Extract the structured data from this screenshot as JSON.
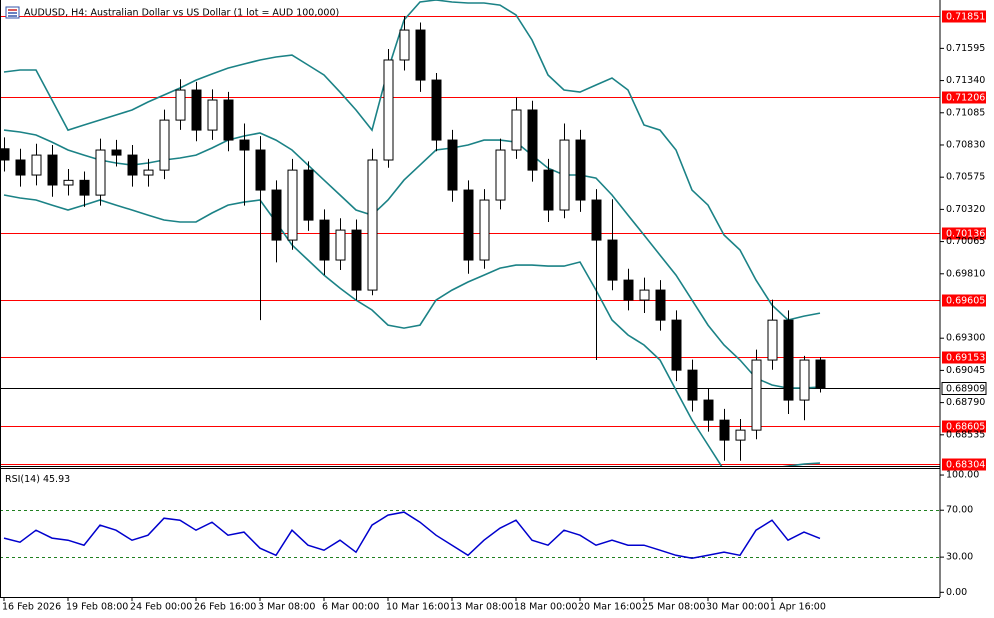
{
  "chart_data": [
    {
      "type": "candlestick",
      "title": "AUDUSD, H4:  Australian Dollar vs US Dollar (1 lot = AUD 100,000)",
      "categories": [
        "16 Feb 2026",
        null,
        null,
        null,
        "19 Feb 08:00",
        null,
        null,
        null,
        "24 Feb 00:00",
        null,
        null,
        null,
        "26 Feb 16:00",
        null,
        null,
        null,
        "3 Mar 08:00",
        null,
        null,
        null,
        "6 Mar 00:00",
        null,
        null,
        null,
        "10 Mar 16:00",
        null,
        null,
        null,
        "13 Mar 08:00",
        null,
        null,
        null,
        "18 Mar 00:00",
        null,
        null,
        null,
        "20 Mar 16:00",
        null,
        null,
        null,
        "25 Mar 08:00",
        null,
        null,
        null,
        "30 Mar 00:00",
        null,
        null,
        null,
        "1 Apr 16:00",
        null,
        null,
        null
      ],
      "open": [
        0.708,
        0.70711,
        0.70592,
        0.7075,
        0.70513,
        0.7055,
        0.70433,
        0.7079,
        0.7075,
        0.70592,
        0.70631,
        0.71027,
        0.71265,
        0.70948,
        0.71186,
        0.70869,
        0.7079,
        0.70473,
        0.70077,
        0.70631,
        0.70235,
        0.69919,
        0.70156,
        0.69681,
        0.70711,
        0.71503,
        0.7174,
        0.71344,
        0.70869,
        0.70473,
        0.69919,
        0.70394,
        0.7079,
        0.71107,
        0.70631,
        0.70315,
        0.70869,
        0.70394,
        0.70077,
        0.6976,
        0.69602,
        0.69681,
        0.69443,
        0.69047,
        0.6881,
        0.68651,
        0.68493,
        0.68572,
        0.69127,
        0.69443,
        0.6881,
        0.69127
      ],
      "high": [
        0.7089,
        0.708,
        0.7084,
        0.7083,
        0.7064,
        0.7062,
        0.7088,
        0.7087,
        0.7083,
        0.7072,
        0.7111,
        0.7135,
        0.7133,
        0.7127,
        0.7125,
        0.71,
        0.709,
        0.7055,
        0.7072,
        0.707,
        0.7032,
        0.7025,
        0.7024,
        0.708,
        0.7159,
        0.71851,
        0.718,
        0.714,
        0.7095,
        0.7055,
        0.7048,
        0.7088,
        0.71206,
        0.7118,
        0.7072,
        0.71,
        0.7095,
        0.7048,
        0.704,
        0.6985,
        0.6978,
        0.6976,
        0.6952,
        0.6913,
        0.689,
        0.6874,
        0.6866,
        0.6921,
        0.69605,
        0.6952,
        0.6916,
        0.6915
      ],
      "low": [
        0.7062,
        0.705,
        0.7051,
        0.7042,
        0.7043,
        0.7034,
        0.7035,
        0.7066,
        0.705,
        0.705,
        0.7056,
        0.7095,
        0.7086,
        0.7087,
        0.7078,
        0.7035,
        0.69443,
        0.699,
        0.7,
        0.7015,
        0.698,
        0.6984,
        0.696,
        0.6964,
        0.7065,
        0.7142,
        0.7125,
        0.7078,
        0.7038,
        0.6981,
        0.6985,
        0.7032,
        0.7072,
        0.7054,
        0.7022,
        0.7025,
        0.703,
        0.69127,
        0.6968,
        0.6952,
        0.695,
        0.6936,
        0.6896,
        0.6872,
        0.6856,
        0.6833,
        0.6833,
        0.685,
        0.6905,
        0.687,
        0.6865,
        0.6887
      ],
      "close": [
        0.70711,
        0.70592,
        0.7075,
        0.70513,
        0.7055,
        0.70433,
        0.7079,
        0.7075,
        0.70592,
        0.70631,
        0.71027,
        0.71265,
        0.70948,
        0.71186,
        0.70869,
        0.7079,
        0.70473,
        0.70077,
        0.70631,
        0.70235,
        0.69919,
        0.70156,
        0.69681,
        0.70711,
        0.71503,
        0.7174,
        0.71344,
        0.70869,
        0.70473,
        0.69919,
        0.70394,
        0.7079,
        0.71107,
        0.70631,
        0.70315,
        0.70869,
        0.70394,
        0.70077,
        0.6976,
        0.69602,
        0.69681,
        0.69443,
        0.69047,
        0.6881,
        0.68651,
        0.68493,
        0.68572,
        0.69127,
        0.69443,
        0.6881,
        0.69127,
        0.68909
      ],
      "up_color": "#ffffff",
      "down_color": "#000000",
      "candle_outline": "#000000",
      "bands": {
        "color": "#1b8286",
        "upper": [
          0.71408,
          0.71424,
          0.71424,
          0.71186,
          0.70948,
          0.70988,
          0.71028,
          0.71067,
          0.71107,
          0.7117,
          0.71226,
          0.71281,
          0.71344,
          0.71392,
          0.71439,
          0.71471,
          0.71503,
          0.71527,
          0.71542,
          0.71463,
          0.71384,
          0.71249,
          0.71107,
          0.70948,
          0.71424,
          0.7182,
          0.71962,
          0.71978,
          0.71962,
          0.71954,
          0.71954,
          0.71938,
          0.71859,
          0.71661,
          0.71384,
          0.71265,
          0.71249,
          0.71305,
          0.7136,
          0.71265,
          0.70988,
          0.70948,
          0.7079,
          0.70473,
          0.70354,
          0.70117,
          0.69998,
          0.6976,
          0.69562,
          0.69444,
          0.69475,
          0.69499
        ],
        "middle": [
          0.70948,
          0.70933,
          0.70909,
          0.70853,
          0.7079,
          0.7075,
          0.70711,
          0.70687,
          0.70671,
          0.70687,
          0.70711,
          0.70727,
          0.7075,
          0.70806,
          0.70869,
          0.70901,
          0.70925,
          0.70869,
          0.7079,
          0.70671,
          0.70552,
          0.70434,
          0.70315,
          0.70275,
          0.70394,
          0.70552,
          0.70671,
          0.7079,
          0.70806,
          0.7083,
          0.70869,
          0.70869,
          0.70853,
          0.7075,
          0.70647,
          0.70592,
          0.70592,
          0.70568,
          0.70434,
          0.70275,
          0.70117,
          0.69958,
          0.698,
          0.69602,
          0.69404,
          0.69246,
          0.69127,
          0.68984,
          0.68929,
          0.68905,
          0.68905,
          0.68913
        ],
        "lower": [
          0.70434,
          0.7041,
          0.70394,
          0.70354,
          0.70315,
          0.70354,
          0.70394,
          0.70354,
          0.70315,
          0.70275,
          0.70236,
          0.7022,
          0.7022,
          0.70291,
          0.70354,
          0.70378,
          0.70394,
          0.7022,
          0.70038,
          0.69919,
          0.698,
          0.69697,
          0.69602,
          0.69523,
          0.69404,
          0.6938,
          0.69404,
          0.69602,
          0.69681,
          0.69745,
          0.698,
          0.69855,
          0.69879,
          0.69879,
          0.69871,
          0.69871,
          0.69903,
          0.69681,
          0.69444,
          0.69325,
          0.69246,
          0.69127,
          0.68889,
          0.68652,
          0.68454,
          0.68256,
          0.68256,
          0.68271,
          0.68271,
          0.68287,
          0.68303,
          0.68311
        ]
      },
      "levels": [
        0.71851,
        0.71206,
        0.70136,
        0.69605,
        0.69153,
        0.68605,
        0.68304
      ],
      "level_color": "#ff0000",
      "current_price": 0.68909,
      "ylim": [
        0.68288,
        0.71978
      ],
      "yticks": [
        0.71595,
        {
          "value": 0.7134,
          "label": "0.71340"
        },
        0.71085,
        {
          "value": 0.7083,
          "label": "0.70830"
        },
        0.70575,
        {
          "value": 0.7032,
          "label": "0.70320"
        },
        0.70065,
        {
          "value": 0.6981,
          "label": "0.69810"
        },
        {
          "value": 0.693,
          "label": "0.69300"
        },
        0.69045,
        {
          "value": 0.6879,
          "label": "0.68790"
        },
        0.68535
      ]
    },
    {
      "type": "line",
      "title": "RSI(14)",
      "color": "#0000cd",
      "values": [
        46.2,
        42.7,
        53.0,
        46.2,
        44.4,
        40.2,
        57.3,
        53.0,
        44.4,
        48.7,
        63.2,
        61.5,
        53.0,
        59.8,
        48.7,
        51.3,
        37.6,
        31.6,
        53.0,
        40.2,
        35.9,
        44.4,
        34.2,
        57.3,
        65.8,
        68.4,
        59.8,
        48.7,
        40.2,
        31.6,
        44.4,
        54.7,
        61.5,
        44.4,
        40.2,
        53.0,
        48.7,
        40.2,
        44.4,
        40.2,
        40.2,
        35.9,
        31.6,
        29.1,
        31.6,
        34.2,
        31.6,
        53.0,
        61.5,
        44.4,
        51.3,
        45.93
      ],
      "levels": [
        70,
        30
      ],
      "ylim": [
        -4,
        106
      ],
      "yticks": [
        {
          "value": 100,
          "label": "100.00"
        },
        {
          "value": 70,
          "label": "70.00"
        },
        {
          "value": 30,
          "label": "30.00"
        },
        {
          "value": 0,
          "label": "0.00"
        }
      ]
    }
  ]
}
